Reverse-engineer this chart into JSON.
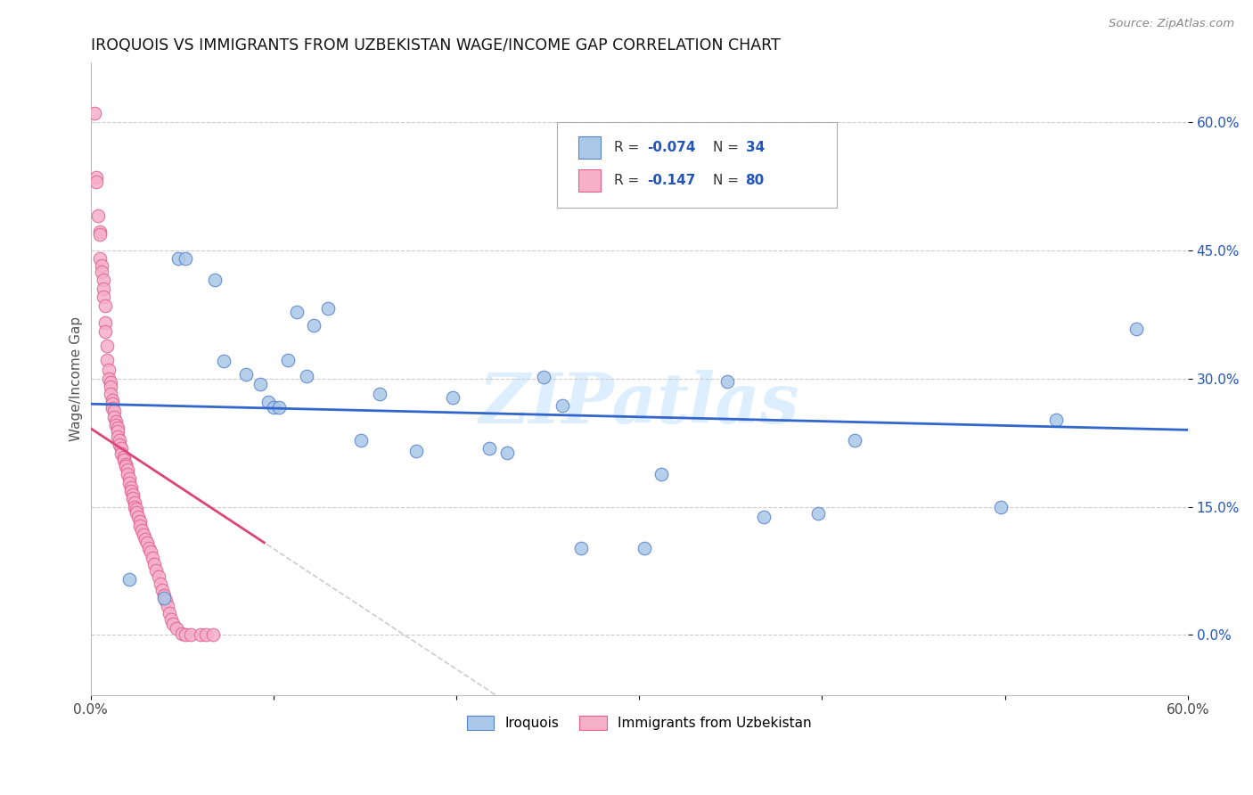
{
  "title": "IROQUOIS VS IMMIGRANTS FROM UZBEKISTAN WAGE/INCOME GAP CORRELATION CHART",
  "source": "Source: ZipAtlas.com",
  "ylabel": "Wage/Income Gap",
  "yticks": [
    0.0,
    0.15,
    0.3,
    0.45,
    0.6
  ],
  "ytick_labels": [
    "0.0%",
    "15.0%",
    "30.0%",
    "45.0%",
    "60.0%"
  ],
  "xmin": 0.0,
  "xmax": 0.6,
  "ymin": -0.07,
  "ymax": 0.67,
  "color_blue_fill": "#aac8e8",
  "color_blue_edge": "#5580cc",
  "color_pink_fill": "#f5b0c8",
  "color_pink_edge": "#e06090",
  "color_blue_text": "#2255bb",
  "trendline_blue": "#3366cc",
  "trendline_pink": "#dd4477",
  "trendline_dash": "#cccccc",
  "watermark_color": "#ddeeff",
  "iroquois_x": [
    0.021,
    0.04,
    0.048,
    0.052,
    0.068,
    0.073,
    0.085,
    0.093,
    0.097,
    0.1,
    0.103,
    0.108,
    0.113,
    0.118,
    0.122,
    0.13,
    0.148,
    0.158,
    0.178,
    0.198,
    0.218,
    0.228,
    0.248,
    0.258,
    0.268,
    0.303,
    0.312,
    0.348,
    0.368,
    0.398,
    0.418,
    0.498,
    0.528,
    0.572
  ],
  "iroquois_y": [
    0.065,
    0.043,
    0.44,
    0.44,
    0.415,
    0.32,
    0.305,
    0.293,
    0.272,
    0.266,
    0.266,
    0.322,
    0.378,
    0.303,
    0.362,
    0.382,
    0.228,
    0.282,
    0.215,
    0.278,
    0.218,
    0.213,
    0.302,
    0.268,
    0.102,
    0.102,
    0.188,
    0.296,
    0.138,
    0.142,
    0.228,
    0.15,
    0.252,
    0.358
  ],
  "uzbekistan_x": [
    0.002,
    0.003,
    0.003,
    0.004,
    0.005,
    0.005,
    0.005,
    0.006,
    0.006,
    0.007,
    0.007,
    0.007,
    0.008,
    0.008,
    0.008,
    0.009,
    0.009,
    0.01,
    0.01,
    0.011,
    0.011,
    0.011,
    0.012,
    0.012,
    0.012,
    0.013,
    0.013,
    0.014,
    0.014,
    0.015,
    0.015,
    0.015,
    0.016,
    0.016,
    0.017,
    0.017,
    0.018,
    0.018,
    0.019,
    0.019,
    0.02,
    0.02,
    0.021,
    0.021,
    0.022,
    0.022,
    0.023,
    0.023,
    0.024,
    0.024,
    0.025,
    0.025,
    0.026,
    0.027,
    0.027,
    0.028,
    0.029,
    0.03,
    0.031,
    0.032,
    0.033,
    0.034,
    0.035,
    0.036,
    0.037,
    0.038,
    0.039,
    0.04,
    0.041,
    0.042,
    0.043,
    0.044,
    0.045,
    0.047,
    0.05,
    0.052,
    0.055,
    0.06,
    0.063,
    0.067
  ],
  "uzbekistan_y": [
    0.61,
    0.535,
    0.53,
    0.49,
    0.472,
    0.468,
    0.44,
    0.432,
    0.425,
    0.415,
    0.405,
    0.395,
    0.385,
    0.365,
    0.355,
    0.338,
    0.322,
    0.31,
    0.3,
    0.295,
    0.29,
    0.282,
    0.275,
    0.27,
    0.265,
    0.262,
    0.255,
    0.25,
    0.245,
    0.242,
    0.238,
    0.232,
    0.228,
    0.222,
    0.218,
    0.212,
    0.208,
    0.205,
    0.2,
    0.197,
    0.193,
    0.188,
    0.183,
    0.178,
    0.172,
    0.168,
    0.164,
    0.16,
    0.155,
    0.15,
    0.147,
    0.143,
    0.138,
    0.133,
    0.128,
    0.122,
    0.117,
    0.112,
    0.108,
    0.102,
    0.097,
    0.09,
    0.083,
    0.075,
    0.068,
    0.06,
    0.053,
    0.046,
    0.04,
    0.034,
    0.025,
    0.018,
    0.013,
    0.008,
    0.002,
    0.0,
    0.0,
    0.0,
    0.0,
    0.0
  ]
}
